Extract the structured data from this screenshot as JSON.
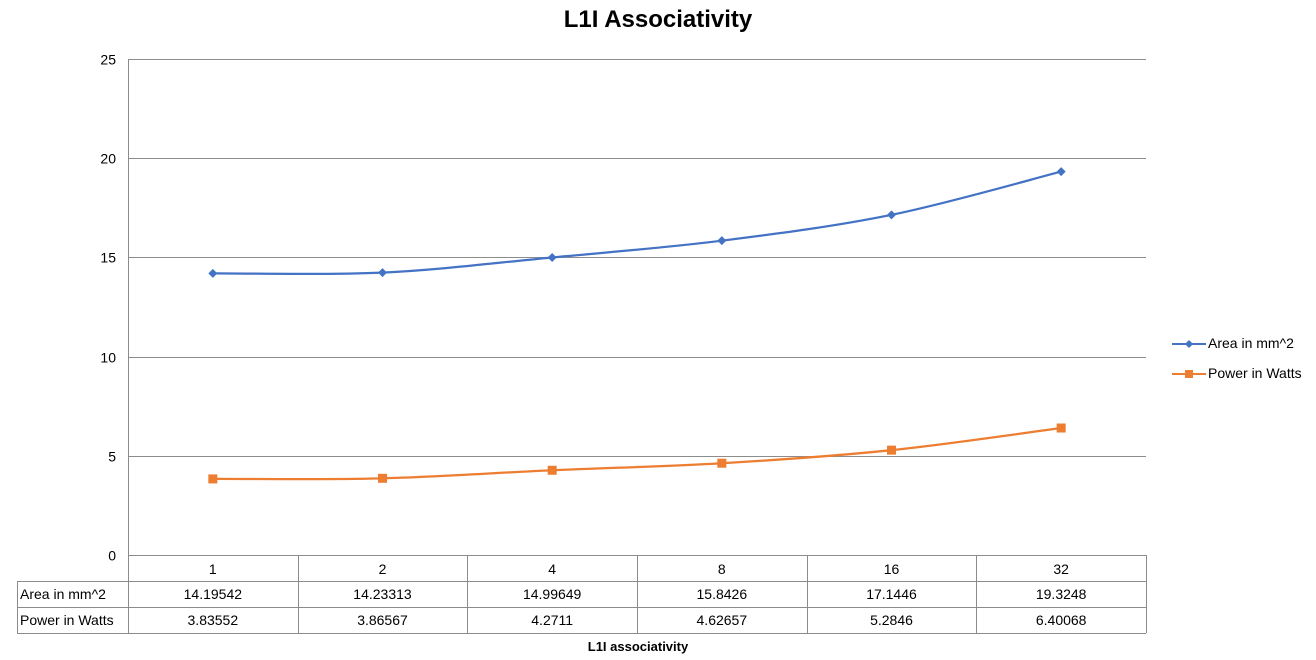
{
  "chart_data": {
    "type": "line",
    "title": "L1I Associativity",
    "xlabel": "L1I associativity",
    "ylabel": "",
    "ylim": [
      0,
      25
    ],
    "yticks": [
      "0",
      "5",
      "10",
      "15",
      "20",
      "25"
    ],
    "categories": [
      "1",
      "2",
      "4",
      "8",
      "16",
      "32"
    ],
    "grid": true,
    "legend": "right",
    "series": [
      {
        "name": "Area in mm^2",
        "color": "#4472C4",
        "marker": "diamond",
        "values": [
          14.19542,
          14.23313,
          14.99649,
          15.8426,
          17.1446,
          19.3248
        ],
        "labels": [
          "14.19542",
          "14.23313",
          "14.99649",
          "15.8426",
          "17.1446",
          "19.3248"
        ]
      },
      {
        "name": "Power in Watts",
        "color": "#ED7D31",
        "marker": "square",
        "values": [
          3.83552,
          3.86567,
          4.2711,
          4.62657,
          5.2846,
          6.40068
        ],
        "labels": [
          "3.83552",
          "3.86567",
          "4.2711",
          "4.62657",
          "5.2846",
          "6.40068"
        ]
      }
    ]
  }
}
